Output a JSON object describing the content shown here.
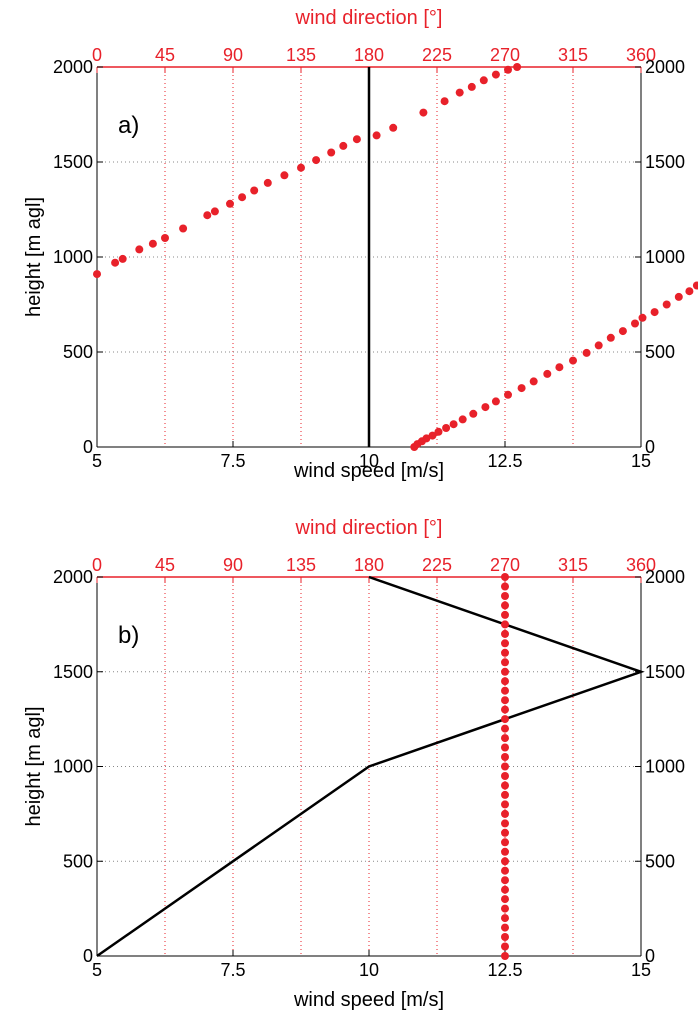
{
  "chart_data": [
    {
      "type": "line",
      "panel_label": "a)",
      "xlabel": "wind speed [m/s]",
      "xlim": [
        5,
        15
      ],
      "xticks": [
        5,
        7.5,
        10,
        12.5,
        15
      ],
      "xtick_labels": [
        "5",
        "7.5",
        "10",
        "12.5",
        "15"
      ],
      "x2label": "wind direction [°]",
      "x2lim": [
        0,
        360
      ],
      "x2ticks": [
        0,
        45,
        90,
        135,
        180,
        225,
        270,
        315,
        360
      ],
      "x2tick_labels": [
        "0",
        "45",
        "90",
        "135",
        "180",
        "225",
        "270",
        "315",
        "360"
      ],
      "ylabel": "height [m agl]",
      "ylim": [
        0,
        2000
      ],
      "yticks": [
        0,
        500,
        1000,
        1500,
        2000
      ],
      "ytick_labels": [
        "0",
        "500",
        "1000",
        "1500",
        "2000"
      ],
      "grid": true,
      "series": [
        {
          "axis": "speed",
          "style": "line",
          "color": "#000000",
          "points": [
            [
              10,
              0
            ],
            [
              10,
              2000
            ]
          ]
        },
        {
          "axis": "direction",
          "style": "markers",
          "color": "#e8212a",
          "points": [
            [
              0,
              910
            ],
            [
              12,
              970
            ],
            [
              17,
              990
            ],
            [
              28,
              1040
            ],
            [
              37,
              1070
            ],
            [
              45,
              1100
            ],
            [
              57,
              1150
            ],
            [
              73,
              1220
            ],
            [
              78,
              1240
            ],
            [
              88,
              1280
            ],
            [
              96,
              1315
            ],
            [
              104,
              1350
            ],
            [
              113,
              1390
            ],
            [
              124,
              1430
            ],
            [
              135,
              1470
            ],
            [
              145,
              1510
            ],
            [
              155,
              1550
            ],
            [
              163,
              1585
            ],
            [
              172,
              1620
            ],
            [
              185,
              1640
            ],
            [
              196,
              1680
            ],
            [
              216,
              1760
            ],
            [
              230,
              1820
            ],
            [
              240,
              1865
            ],
            [
              248,
              1895
            ],
            [
              256,
              1930
            ],
            [
              264,
              1960
            ],
            [
              272,
              1985
            ],
            [
              278,
              2000
            ],
            [
              210,
              0
            ],
            [
              212,
              15
            ],
            [
              215,
              30
            ],
            [
              218,
              45
            ],
            [
              222,
              60
            ],
            [
              226,
              80
            ],
            [
              231,
              100
            ],
            [
              236,
              120
            ],
            [
              242,
              145
            ],
            [
              249,
              175
            ],
            [
              257,
              210
            ],
            [
              264,
              240
            ],
            [
              272,
              275
            ],
            [
              281,
              310
            ],
            [
              289,
              345
            ],
            [
              298,
              385
            ],
            [
              306,
              420
            ],
            [
              315,
              455
            ],
            [
              324,
              495
            ],
            [
              332,
              535
            ],
            [
              340,
              575
            ],
            [
              348,
              610
            ],
            [
              356,
              650
            ],
            [
              361,
              680
            ],
            [
              369,
              710
            ],
            [
              377,
              750
            ],
            [
              385,
              790
            ],
            [
              392,
              820
            ],
            [
              397,
              850
            ]
          ]
        }
      ]
    },
    {
      "type": "line",
      "panel_label": "b)",
      "xlabel": "wind speed [m/s]",
      "xlim": [
        5,
        15
      ],
      "xticks": [
        5,
        7.5,
        10,
        12.5,
        15
      ],
      "xtick_labels": [
        "5",
        "7.5",
        "10",
        "12.5",
        "15"
      ],
      "x2label": "wind direction [°]",
      "x2lim": [
        0,
        360
      ],
      "x2ticks": [
        0,
        45,
        90,
        135,
        180,
        225,
        270,
        315,
        360
      ],
      "x2tick_labels": [
        "0",
        "45",
        "90",
        "135",
        "180",
        "225",
        "270",
        "315",
        "360"
      ],
      "ylabel": "height [m agl]",
      "ylim": [
        0,
        2000
      ],
      "yticks": [
        0,
        500,
        1000,
        1500,
        2000
      ],
      "ytick_labels": [
        "0",
        "500",
        "1000",
        "1500",
        "2000"
      ],
      "grid": true,
      "series": [
        {
          "axis": "speed",
          "style": "line",
          "color": "#000000",
          "points": [
            [
              5,
              0
            ],
            [
              10,
              1000
            ],
            [
              15,
              1500
            ],
            [
              10,
              2000
            ]
          ]
        },
        {
          "axis": "direction",
          "style": "markers",
          "color": "#e8212a",
          "points": [
            [
              270,
              0
            ],
            [
              270,
              50
            ],
            [
              270,
              100
            ],
            [
              270,
              150
            ],
            [
              270,
              200
            ],
            [
              270,
              250
            ],
            [
              270,
              300
            ],
            [
              270,
              350
            ],
            [
              270,
              400
            ],
            [
              270,
              450
            ],
            [
              270,
              500
            ],
            [
              270,
              550
            ],
            [
              270,
              600
            ],
            [
              270,
              650
            ],
            [
              270,
              700
            ],
            [
              270,
              750
            ],
            [
              270,
              800
            ],
            [
              270,
              850
            ],
            [
              270,
              900
            ],
            [
              270,
              950
            ],
            [
              270,
              1000
            ],
            [
              270,
              1050
            ],
            [
              270,
              1100
            ],
            [
              270,
              1150
            ],
            [
              270,
              1200
            ],
            [
              270,
              1250
            ],
            [
              270,
              1300
            ],
            [
              270,
              1350
            ],
            [
              270,
              1400
            ],
            [
              270,
              1450
            ],
            [
              270,
              1500
            ],
            [
              270,
              1550
            ],
            [
              270,
              1600
            ],
            [
              270,
              1650
            ],
            [
              270,
              1700
            ],
            [
              270,
              1750
            ],
            [
              270,
              1800
            ],
            [
              270,
              1850
            ],
            [
              270,
              1900
            ],
            [
              270,
              1950
            ],
            [
              270,
              2000
            ]
          ]
        }
      ]
    }
  ]
}
